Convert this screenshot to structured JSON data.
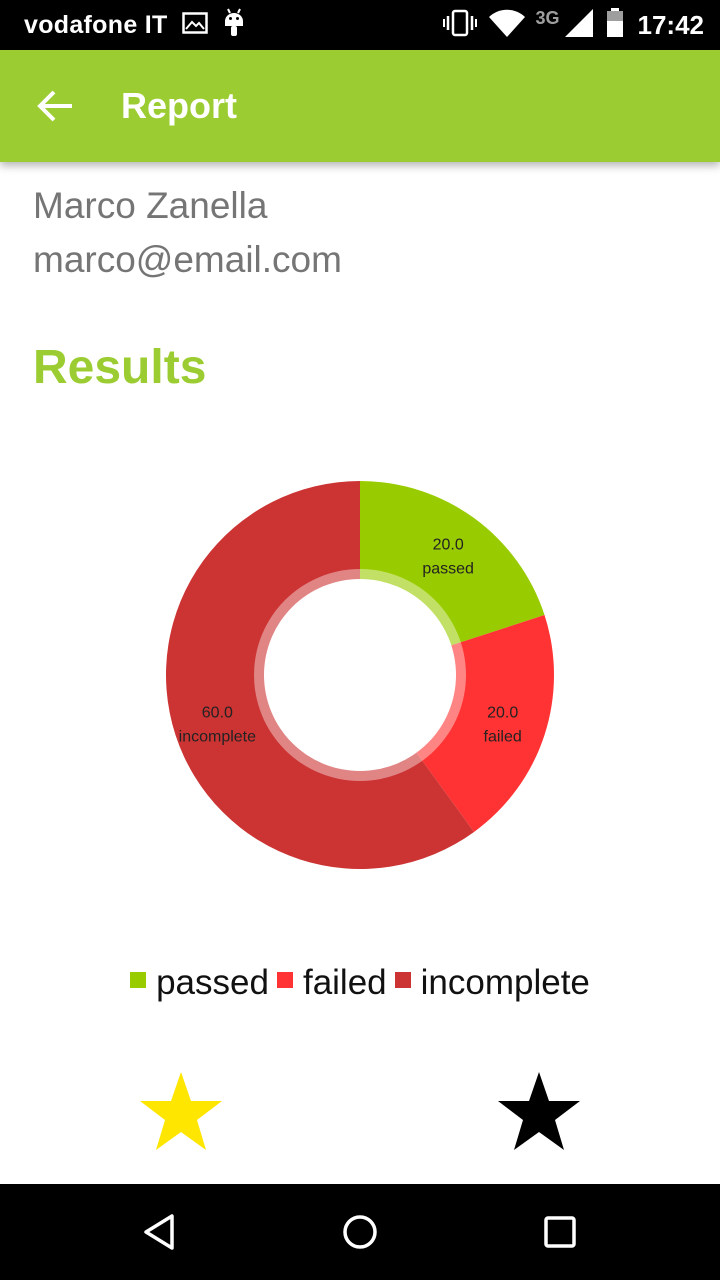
{
  "status_bar": {
    "carrier": "vodafone IT",
    "network": "3G",
    "time": "17:42",
    "icons": [
      "image-icon",
      "android-icon",
      "vibrate-icon",
      "wifi-icon",
      "signal-icon",
      "battery-icon"
    ]
  },
  "app_bar": {
    "title": "Report",
    "back_icon": "arrow-back-icon",
    "color": "#9bcd32"
  },
  "user": {
    "name": "Marco Zanella",
    "email": "marco@email.com"
  },
  "section": {
    "title": "Results"
  },
  "chart_data": {
    "type": "pie",
    "donut": true,
    "categories": [
      "passed",
      "failed",
      "incomplete"
    ],
    "values": [
      20.0,
      20.0,
      60.0
    ],
    "value_labels": [
      "20.0",
      "20.0",
      "60.0"
    ],
    "colors": [
      "#99cc00",
      "#ff3333",
      "#cc3333"
    ],
    "legend": {
      "position": "bottom",
      "entries": [
        "passed",
        "failed",
        "incomplete"
      ]
    }
  },
  "rating": {
    "stars": [
      {
        "icon": "star-icon",
        "color": "#ffe600"
      },
      {
        "icon": "star-icon",
        "color": "#000000"
      }
    ]
  },
  "nav_bar": {
    "icons": [
      "nav-back-icon",
      "nav-home-icon",
      "nav-recents-icon"
    ]
  }
}
